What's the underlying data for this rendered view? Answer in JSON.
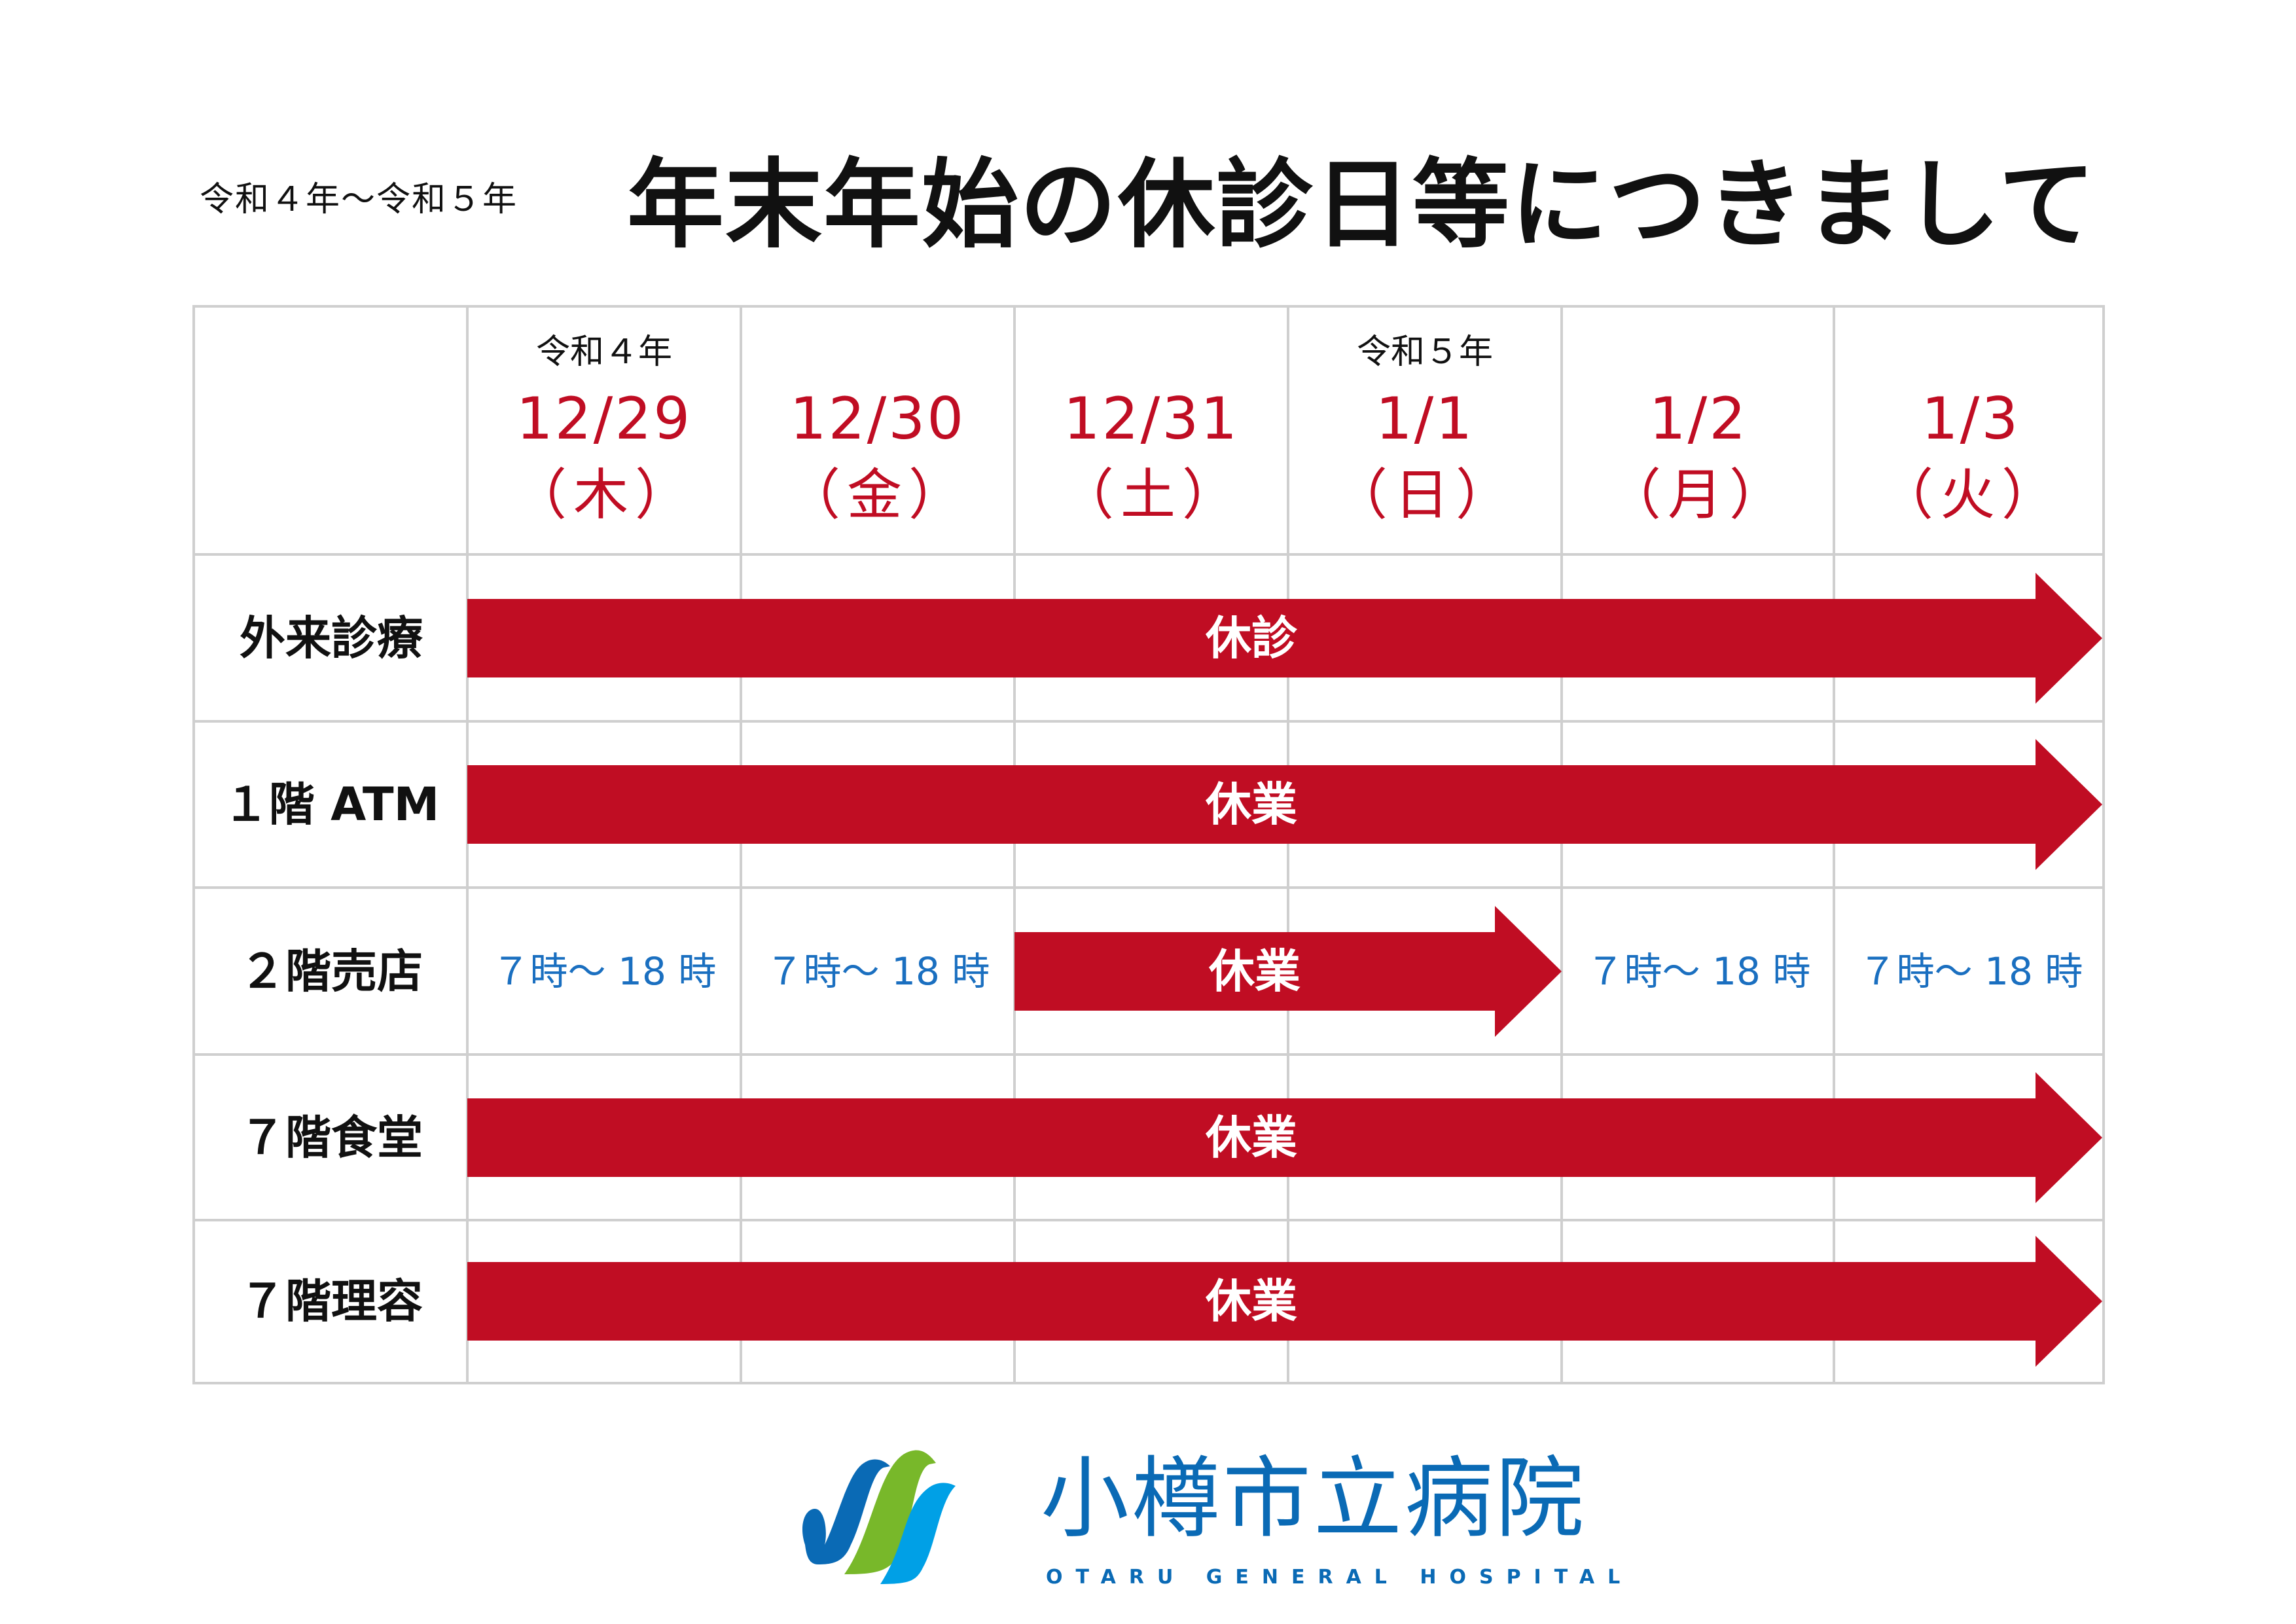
{
  "header": {
    "subtitle": "令和４年〜令和５年",
    "title": "年末年始の休診日等につきまして"
  },
  "columns": [
    {
      "era": "令和４年",
      "date": "12/29",
      "weekday": "（木）"
    },
    {
      "era": "",
      "date": "12/30",
      "weekday": "（金）"
    },
    {
      "era": "",
      "date": "12/31",
      "weekday": "（土）"
    },
    {
      "era": "令和５年",
      "date": "1/1",
      "weekday": "（日）"
    },
    {
      "era": "",
      "date": "1/2",
      "weekday": "（月）"
    },
    {
      "era": "",
      "date": "1/3",
      "weekday": "（火）"
    }
  ],
  "rows": [
    {
      "label": "外来診療",
      "closed_label": "休診",
      "closed_from": "12/29",
      "closed_to": "1/3",
      "hours": [
        "",
        "",
        "",
        "",
        "",
        ""
      ]
    },
    {
      "label": "１階 ATM",
      "closed_label": "休業",
      "closed_from": "12/29",
      "closed_to": "1/3",
      "hours": [
        "",
        "",
        "",
        "",
        "",
        ""
      ]
    },
    {
      "label": "２階売店",
      "closed_label": "休業",
      "closed_from": "12/31",
      "closed_to": "1/1",
      "hours": [
        "７時〜 18 時",
        "７時〜 18 時",
        "",
        "",
        "７時〜 18 時",
        "７時〜 18 時"
      ]
    },
    {
      "label": "７階食堂",
      "closed_label": "休業",
      "closed_from": "12/29",
      "closed_to": "1/3",
      "hours": [
        "",
        "",
        "",
        "",
        "",
        ""
      ]
    },
    {
      "label": "７階理容",
      "closed_label": "休業",
      "closed_from": "12/29",
      "closed_to": "1/3",
      "hours": [
        "",
        "",
        "",
        "",
        "",
        ""
      ]
    }
  ],
  "logo": {
    "name": "小樽市立病院",
    "english": "OTARU GENERAL HOSPITAL"
  },
  "colors": {
    "closed": "#c00d23",
    "hours": "#1a6fc0",
    "logo_blue": "#0a6ab5",
    "logo_green": "#78b82a",
    "logo_light_blue": "#00a0e6"
  }
}
